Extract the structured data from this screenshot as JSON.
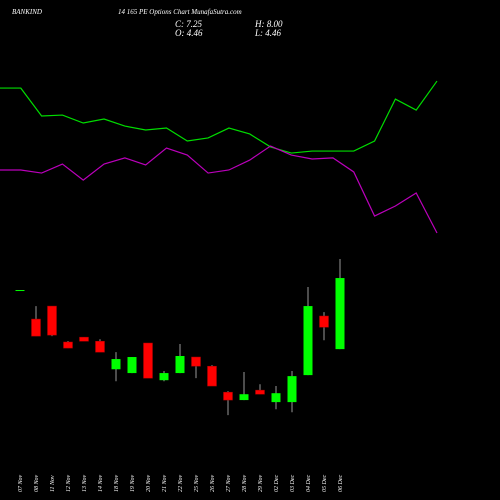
{
  "header": {
    "symbol": "BANKIND",
    "title": "14 165 PE Options  Chart MunafaSutra.com",
    "close": "C: 7.25",
    "high": "H: 8.00",
    "open": "O: 4.46",
    "low": "L: 4.46"
  },
  "chart_data": [
    {
      "type": "line",
      "ylim": [
        0,
        100
      ],
      "series": [
        {
          "name": "Upper line",
          "color": "#00dd00",
          "values": [
            84.4,
            84.4,
            68.9,
            69.4,
            65,
            67.2,
            63.3,
            61.1,
            62.2,
            55,
            56.7,
            62.2,
            58.9,
            51.7,
            48.3,
            49.4,
            49.4,
            49.4,
            55,
            78.3,
            72.2,
            88.3
          ]
        },
        {
          "name": "Lower line",
          "color": "#bb00bb",
          "values": [
            38.9,
            38.9,
            37.2,
            42.2,
            33.3,
            42.2,
            45.6,
            41.7,
            51.1,
            47.2,
            37.2,
            38.9,
            44.4,
            52.2,
            47.2,
            45,
            45.6,
            37.8,
            13.3,
            18.9,
            26.1,
            3.9
          ]
        }
      ]
    },
    {
      "type": "candlestick",
      "ylim": [
        0.5,
        10
      ],
      "up_color": "#00ff00",
      "down_color": "#ff0000",
      "categories": [
        "07 Nov",
        "08 Nov",
        "11 Nov",
        "12 Nov",
        "13 Nov",
        "14 Nov",
        "18 Nov",
        "19 Nov",
        "20 Nov",
        "21 Nov",
        "22 Nov",
        "25 Nov",
        "26 Nov",
        "27 Nov",
        "28 Nov",
        "29 Nov",
        "02 Dec",
        "03 Dec",
        "04 Dec",
        "05 Dec",
        "06 Dec"
      ],
      "open": [
        6.78,
        5.64,
        6.15,
        4.74,
        4.93,
        4.77,
        3.67,
        3.52,
        4.7,
        3.24,
        3.52,
        4.15,
        3.79,
        2.77,
        2.46,
        2.85,
        2.38,
        2.38,
        3.44,
        5.76,
        4.46
      ],
      "high": [
        6.78,
        6.15,
        6.15,
        4.78,
        4.93,
        4.85,
        4.34,
        4.15,
        4.7,
        3.6,
        4.66,
        4.15,
        3.83,
        2.81,
        3.56,
        3.08,
        3.01,
        3.6,
        6.9,
        5.91,
        8.0
      ],
      "low": [
        6.78,
        4.97,
        4.97,
        4.5,
        4.77,
        4.34,
        3.2,
        3.52,
        3.32,
        3.2,
        3.52,
        3.32,
        3.01,
        1.87,
        2.46,
        2.69,
        2.1,
        1.98,
        3.44,
        4.81,
        4.46
      ],
      "close": [
        6.78,
        4.97,
        5.01,
        4.5,
        4.77,
        4.34,
        4.07,
        4.15,
        3.32,
        3.52,
        4.19,
        3.79,
        3.01,
        2.46,
        2.69,
        2.69,
        2.73,
        3.4,
        6.15,
        5.32,
        7.25
      ]
    }
  ]
}
